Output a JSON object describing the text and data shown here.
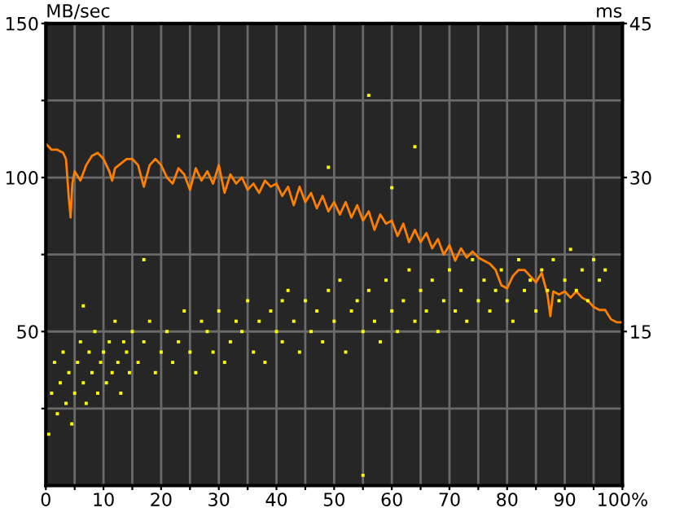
{
  "chart_data": {
    "type": "line",
    "ylabel": "MB/sec",
    "y2label": "ms",
    "xlim": [
      0,
      100
    ],
    "ylim": [
      0,
      150
    ],
    "y2lim": [
      0,
      45
    ],
    "xticks": [
      0,
      {
        "value": 5,
        "label": null
      },
      10,
      {
        "value": 15,
        "label": null
      },
      20,
      {
        "value": 25,
        "label": null
      },
      30,
      {
        "value": 35,
        "label": null
      },
      40,
      {
        "value": 45,
        "label": null
      },
      50,
      {
        "value": 55,
        "label": null
      },
      60,
      {
        "value": 65,
        "label": null
      },
      70,
      {
        "value": 75,
        "label": null
      },
      80,
      {
        "value": 85,
        "label": null
      },
      90,
      {
        "value": 95,
        "label": null
      },
      {
        "value": 100,
        "label": "100%"
      }
    ],
    "yticks": [
      {
        "value": 25,
        "label": null
      },
      50,
      {
        "value": 75,
        "label": null
      },
      100,
      {
        "value": 125,
        "label": null
      },
      150
    ],
    "y2ticks": [
      15,
      30,
      45
    ],
    "grid": true,
    "legend": false,
    "series": [
      {
        "color": "#ff8000",
        "marker": "none",
        "line_style": "solid",
        "x": [
          0,
          1,
          2,
          3,
          3.5,
          4,
          4.3,
          4.6,
          5,
          6,
          7,
          8,
          9,
          10,
          11,
          11.5,
          12,
          14,
          15,
          16,
          17,
          18,
          19,
          20,
          21,
          22,
          23,
          24,
          25,
          26,
          27,
          28,
          29,
          30,
          31,
          32,
          33,
          34,
          35,
          36,
          37,
          38,
          39,
          40,
          41,
          42,
          43,
          44,
          45,
          46,
          47,
          48,
          49,
          50,
          51,
          52,
          53,
          54,
          55,
          56,
          57,
          58,
          59,
          60,
          61,
          62,
          63,
          64,
          65,
          66,
          67,
          68,
          69,
          70,
          71,
          72,
          73,
          74,
          75,
          76,
          77,
          78,
          79,
          80,
          81,
          82,
          83,
          84,
          85,
          86,
          87,
          87.5,
          88,
          89,
          90,
          91,
          92,
          93,
          94,
          95,
          96,
          97,
          98,
          99,
          100
        ],
        "values": [
          111,
          109,
          109,
          108,
          106,
          93,
          87,
          98,
          102,
          99,
          104,
          107,
          108,
          106,
          102,
          99,
          103,
          106,
          106,
          104,
          97,
          104,
          106,
          104,
          100,
          98,
          103,
          101,
          96,
          103,
          99,
          102,
          98,
          104,
          95,
          101,
          98,
          100,
          96,
          98,
          95,
          99,
          97,
          98,
          94,
          97,
          91,
          97,
          92,
          95,
          90,
          94,
          89,
          92,
          88,
          92,
          87,
          91,
          86,
          89,
          83,
          88,
          85,
          86,
          81,
          85,
          79,
          83,
          79,
          82,
          77,
          80,
          75,
          78,
          73,
          77,
          74,
          76,
          74,
          73,
          72,
          70,
          65,
          64,
          68,
          70,
          70,
          68,
          66,
          69,
          62,
          55,
          63,
          62,
          63,
          61,
          63,
          61,
          60,
          58,
          57,
          57,
          54,
          53,
          53
        ]
      },
      {
        "type": "scatter",
        "axis": "y2",
        "color": "#ffff00",
        "marker": "square",
        "x": [
          0.5,
          1,
          1.5,
          2,
          2.5,
          3,
          3.5,
          4,
          4.5,
          5,
          5.5,
          6,
          6.5,
          7,
          7.5,
          8,
          8.5,
          9,
          9.5,
          10,
          10.5,
          11,
          11.5,
          12,
          12.5,
          13,
          13.5,
          14,
          14.5,
          15,
          16,
          17,
          18,
          19,
          20,
          21,
          22,
          23,
          24,
          25,
          26,
          27,
          28,
          29,
          30,
          31,
          32,
          33,
          34,
          35,
          36,
          37,
          38,
          39,
          40,
          41,
          42,
          43,
          44,
          45,
          46,
          47,
          48,
          49,
          50,
          51,
          52,
          53,
          54,
          55,
          56,
          57,
          58,
          59,
          60,
          61,
          62,
          63,
          64,
          65,
          66,
          67,
          68,
          69,
          70,
          71,
          72,
          73,
          74,
          75,
          76,
          77,
          78,
          79,
          80,
          81,
          82,
          83,
          84,
          85,
          86,
          87,
          88,
          89,
          90,
          91,
          92,
          93,
          94,
          95,
          96,
          97,
          6.5,
          17,
          23,
          41,
          49,
          56,
          60,
          64,
          55
        ],
        "values": [
          5,
          9,
          12,
          7,
          10,
          13,
          8,
          11,
          6,
          9,
          12,
          14,
          10,
          8,
          13,
          11,
          15,
          9,
          12,
          13,
          10,
          14,
          11,
          16,
          12,
          9,
          14,
          13,
          11,
          15,
          12,
          14,
          16,
          11,
          13,
          15,
          12,
          14,
          17,
          13,
          11,
          16,
          15,
          13,
          17,
          12,
          14,
          16,
          15,
          18,
          13,
          16,
          12,
          17,
          15,
          14,
          19,
          16,
          13,
          18,
          15,
          17,
          14,
          19,
          16,
          20,
          13,
          17,
          18,
          15,
          19,
          16,
          14,
          20,
          17,
          15,
          18,
          21,
          16,
          19,
          17,
          20,
          15,
          18,
          21,
          17,
          19,
          16,
          22,
          18,
          20,
          17,
          19,
          21,
          18,
          16,
          22,
          19,
          20,
          17,
          21,
          19,
          22,
          18,
          20,
          23,
          19,
          21,
          18,
          22,
          20,
          21,
          17.5,
          22,
          34,
          18,
          31,
          38,
          29,
          33,
          1
        ]
      }
    ]
  }
}
